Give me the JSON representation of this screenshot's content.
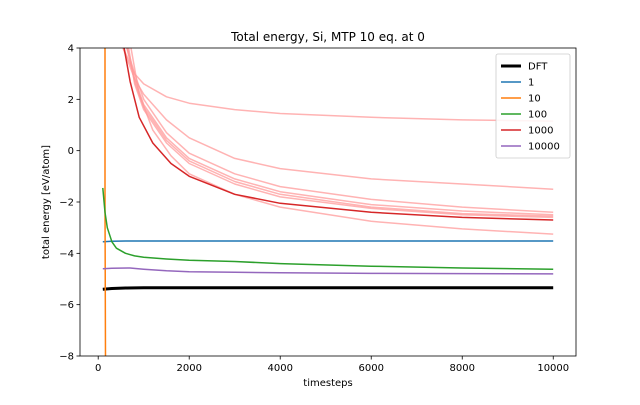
{
  "chart_data": {
    "type": "line",
    "title": "Total energy, Si, MTP 10 eq. at 0",
    "xlabel": "timesteps",
    "ylabel": "total energy [eV/atom]",
    "xlim": [
      -400,
      10500
    ],
    "ylim": [
      -8,
      4
    ],
    "xticks": [
      0,
      2000,
      4000,
      6000,
      8000,
      10000
    ],
    "yticks": [
      -8,
      -6,
      -4,
      -2,
      0,
      2,
      4
    ],
    "grid": false,
    "legend_position": "top-right",
    "series": [
      {
        "name": "DFT",
        "color": "#000000",
        "width": 3,
        "x": [
          100,
          300,
          600,
          1000,
          2000,
          4000,
          6000,
          8000,
          10000
        ],
        "y": [
          -5.4,
          -5.37,
          -5.35,
          -5.34,
          -5.34,
          -5.34,
          -5.34,
          -5.34,
          -5.34
        ]
      },
      {
        "name": "1",
        "color": "#1f77b4",
        "width": 1.5,
        "x": [
          100,
          300,
          600,
          1000,
          2000,
          4000,
          6000,
          8000,
          10000
        ],
        "y": [
          -3.55,
          -3.53,
          -3.52,
          -3.52,
          -3.52,
          -3.52,
          -3.52,
          -3.52,
          -3.52
        ]
      },
      {
        "name": "10",
        "color": "#ff7f0e",
        "width": 1.5,
        "x": [
          150,
          150,
          160
        ],
        "y": [
          4.2,
          -2,
          -8.2
        ]
      },
      {
        "name": "100",
        "color": "#2ca02c",
        "width": 1.5,
        "x": [
          100,
          150,
          200,
          300,
          400,
          600,
          800,
          1000,
          1500,
          2000,
          3000,
          4000,
          6000,
          8000,
          10000
        ],
        "y": [
          -1.45,
          -2.4,
          -3.0,
          -3.55,
          -3.8,
          -4.0,
          -4.1,
          -4.15,
          -4.22,
          -4.27,
          -4.32,
          -4.4,
          -4.5,
          -4.57,
          -4.62
        ]
      },
      {
        "name": "1000",
        "color": "#d62728",
        "width": 1.5,
        "x": [
          550,
          700,
          900,
          1200,
          1600,
          2000,
          3000,
          4000,
          6000,
          8000,
          10000
        ],
        "y": [
          4.2,
          2.7,
          1.3,
          0.3,
          -0.5,
          -1.0,
          -1.7,
          -2.05,
          -2.4,
          -2.6,
          -2.7
        ]
      },
      {
        "name": "10000",
        "color": "#9467bd",
        "width": 1.5,
        "x": [
          100,
          300,
          700,
          1000,
          1500,
          2000,
          3000,
          4000,
          6000,
          8000,
          10000
        ],
        "y": [
          -4.6,
          -4.58,
          -4.57,
          -4.62,
          -4.68,
          -4.72,
          -4.74,
          -4.76,
          -4.78,
          -4.79,
          -4.8
        ]
      },
      {
        "color": "#ff9999",
        "width": 1.5,
        "opacity": 0.75,
        "x": [
          500,
          800,
          1000,
          1500,
          2000,
          3000,
          4000,
          6000,
          8000,
          10000
        ],
        "y": [
          4.2,
          3.0,
          2.6,
          2.1,
          1.85,
          1.6,
          1.45,
          1.3,
          1.2,
          1.15
        ]
      },
      {
        "color": "#ff9999",
        "width": 1.5,
        "opacity": 0.75,
        "x": [
          500,
          800,
          1000,
          1500,
          2000,
          3000,
          4000,
          6000,
          8000,
          10000
        ],
        "y": [
          4.2,
          2.8,
          2.2,
          1.2,
          0.5,
          -0.3,
          -0.7,
          -1.1,
          -1.3,
          -1.5
        ]
      },
      {
        "color": "#ff9999",
        "width": 1.5,
        "opacity": 0.75,
        "x": [
          600,
          800,
          1000,
          1500,
          2000,
          3000,
          4000,
          6000,
          8000,
          10000
        ],
        "y": [
          4.2,
          3.0,
          2.0,
          0.7,
          -0.1,
          -0.9,
          -1.4,
          -1.9,
          -2.2,
          -2.4
        ]
      },
      {
        "color": "#ff9999",
        "width": 1.5,
        "opacity": 0.75,
        "x": [
          600,
          800,
          1000,
          1500,
          2000,
          3000,
          4000,
          6000,
          8000,
          10000
        ],
        "y": [
          4.2,
          2.8,
          1.8,
          0.5,
          -0.3,
          -1.1,
          -1.6,
          -2.1,
          -2.35,
          -2.5
        ]
      },
      {
        "color": "#ff9999",
        "width": 1.5,
        "opacity": 0.75,
        "x": [
          620,
          800,
          1000,
          1500,
          2000,
          3000,
          4000,
          6000,
          8000,
          10000
        ],
        "y": [
          4.2,
          2.7,
          1.7,
          0.4,
          -0.4,
          -1.2,
          -1.7,
          -2.2,
          -2.45,
          -2.55
        ]
      },
      {
        "color": "#ff9999",
        "width": 1.5,
        "opacity": 0.75,
        "x": [
          650,
          800,
          1000,
          1500,
          2000,
          3000,
          4000,
          6000,
          8000,
          10000
        ],
        "y": [
          4.2,
          2.6,
          1.6,
          0.3,
          -0.5,
          -1.3,
          -1.8,
          -2.25,
          -2.5,
          -2.6
        ]
      },
      {
        "color": "#ff9999",
        "width": 1.5,
        "opacity": 0.75,
        "x": [
          700,
          900,
          1200,
          1600,
          2000,
          3000,
          4000,
          6000,
          8000,
          10000
        ],
        "y": [
          4.2,
          2.2,
          0.8,
          -0.2,
          -0.9,
          -1.7,
          -2.2,
          -2.75,
          -3.05,
          -3.25
        ]
      }
    ]
  }
}
